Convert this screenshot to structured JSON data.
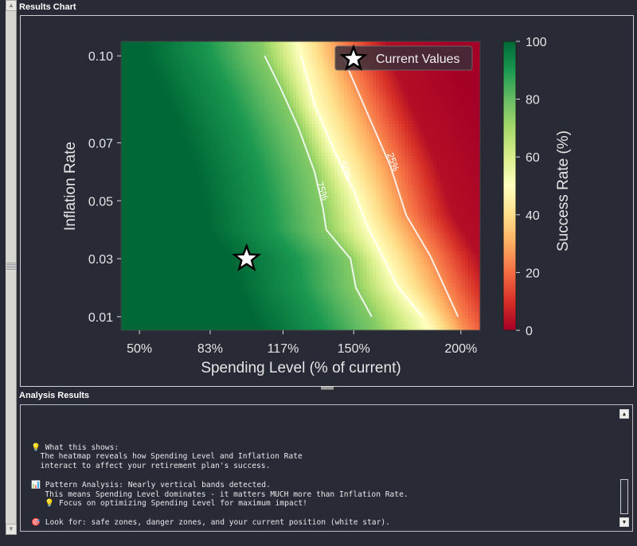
{
  "panels": {
    "chart_title": "Results Chart",
    "analysis_title": "Analysis Results"
  },
  "chart_data": {
    "type": "heatmap",
    "xlabel": "Spending Level (% of current)",
    "ylabel": "Inflation Rate",
    "xlim": [
      41.4,
      209
    ],
    "ylim": [
      0.0053,
      0.105
    ],
    "x_ticks": [
      {
        "v": 50,
        "label": "50%"
      },
      {
        "v": 83,
        "label": "83%"
      },
      {
        "v": 117,
        "label": "117%"
      },
      {
        "v": 150,
        "label": "150%"
      },
      {
        "v": 200,
        "label": "200%"
      }
    ],
    "y_ticks": [
      {
        "v": 0.01,
        "label": "0.01"
      },
      {
        "v": 0.03,
        "label": "0.03"
      },
      {
        "v": 0.05,
        "label": "0.05"
      },
      {
        "v": 0.07,
        "label": "0.07"
      },
      {
        "v": 0.1,
        "label": "0.10"
      }
    ],
    "colorbar": {
      "label": "Success Rate (%)",
      "range": [
        0,
        100
      ],
      "ticks": [
        {
          "v": 0,
          "label": "0"
        },
        {
          "v": 20,
          "label": "20"
        },
        {
          "v": 40,
          "label": "40"
        },
        {
          "v": 60,
          "label": "60"
        },
        {
          "v": 80,
          "label": "80"
        },
        {
          "v": 100,
          "label": "100"
        }
      ],
      "colormap": [
        "#a50026",
        "#d73027",
        "#f46d43",
        "#fdae61",
        "#fee08b",
        "#ffffbf",
        "#d9ef8b",
        "#a6d96a",
        "#66bd63",
        "#1a9850",
        "#006837"
      ]
    },
    "contours": [
      {
        "level": 75,
        "label": "75%",
        "points": [
          [
            108.4,
            0.1
          ],
          [
            115.8,
            0.089
          ],
          [
            124.3,
            0.075
          ],
          [
            131.7,
            0.06
          ],
          [
            135.5,
            0.048
          ],
          [
            137.2,
            0.04
          ],
          [
            148.5,
            0.03
          ],
          [
            151.0,
            0.02
          ],
          [
            158.4,
            0.01
          ]
        ],
        "label_at": [
          134,
          0.053
        ]
      },
      {
        "level": 50,
        "label": "50%",
        "points": [
          [
            125.5,
            0.1
          ],
          [
            131.8,
            0.083
          ],
          [
            141.1,
            0.067
          ],
          [
            150.4,
            0.053
          ],
          [
            155.9,
            0.042
          ],
          [
            163.4,
            0.031
          ],
          [
            170.8,
            0.02
          ],
          [
            182.0,
            0.01
          ]
        ],
        "label_at": [
          145,
          0.06
        ]
      },
      {
        "level": 25,
        "label": "25%",
        "points": [
          [
            144.8,
            0.1
          ],
          [
            155.9,
            0.081
          ],
          [
            167.1,
            0.062
          ],
          [
            174.5,
            0.045
          ],
          [
            185.7,
            0.031
          ],
          [
            191.3,
            0.022
          ],
          [
            198.7,
            0.01
          ]
        ],
        "label_at": [
          167,
          0.063
        ]
      }
    ],
    "current": {
      "spending": 100,
      "inflation": 0.03,
      "legend": "Current Values"
    }
  },
  "analysis": {
    "lines": [
      "💡 What this shows:",
      "  The heatmap reveals how Spending Level and Inflation Rate",
      "  interact to affect your retirement plan's success.",
      "",
      "📊 Pattern Analysis: Nearly vertical bands detected.",
      "   This means Spending Level dominates - it matters MUCH more than Inflation Rate.",
      "   💡 Focus on optimizing Spending Level for maximum impact!",
      "",
      "🎯 Look for: safe zones, danger zones, and your current position (white star)."
    ]
  }
}
